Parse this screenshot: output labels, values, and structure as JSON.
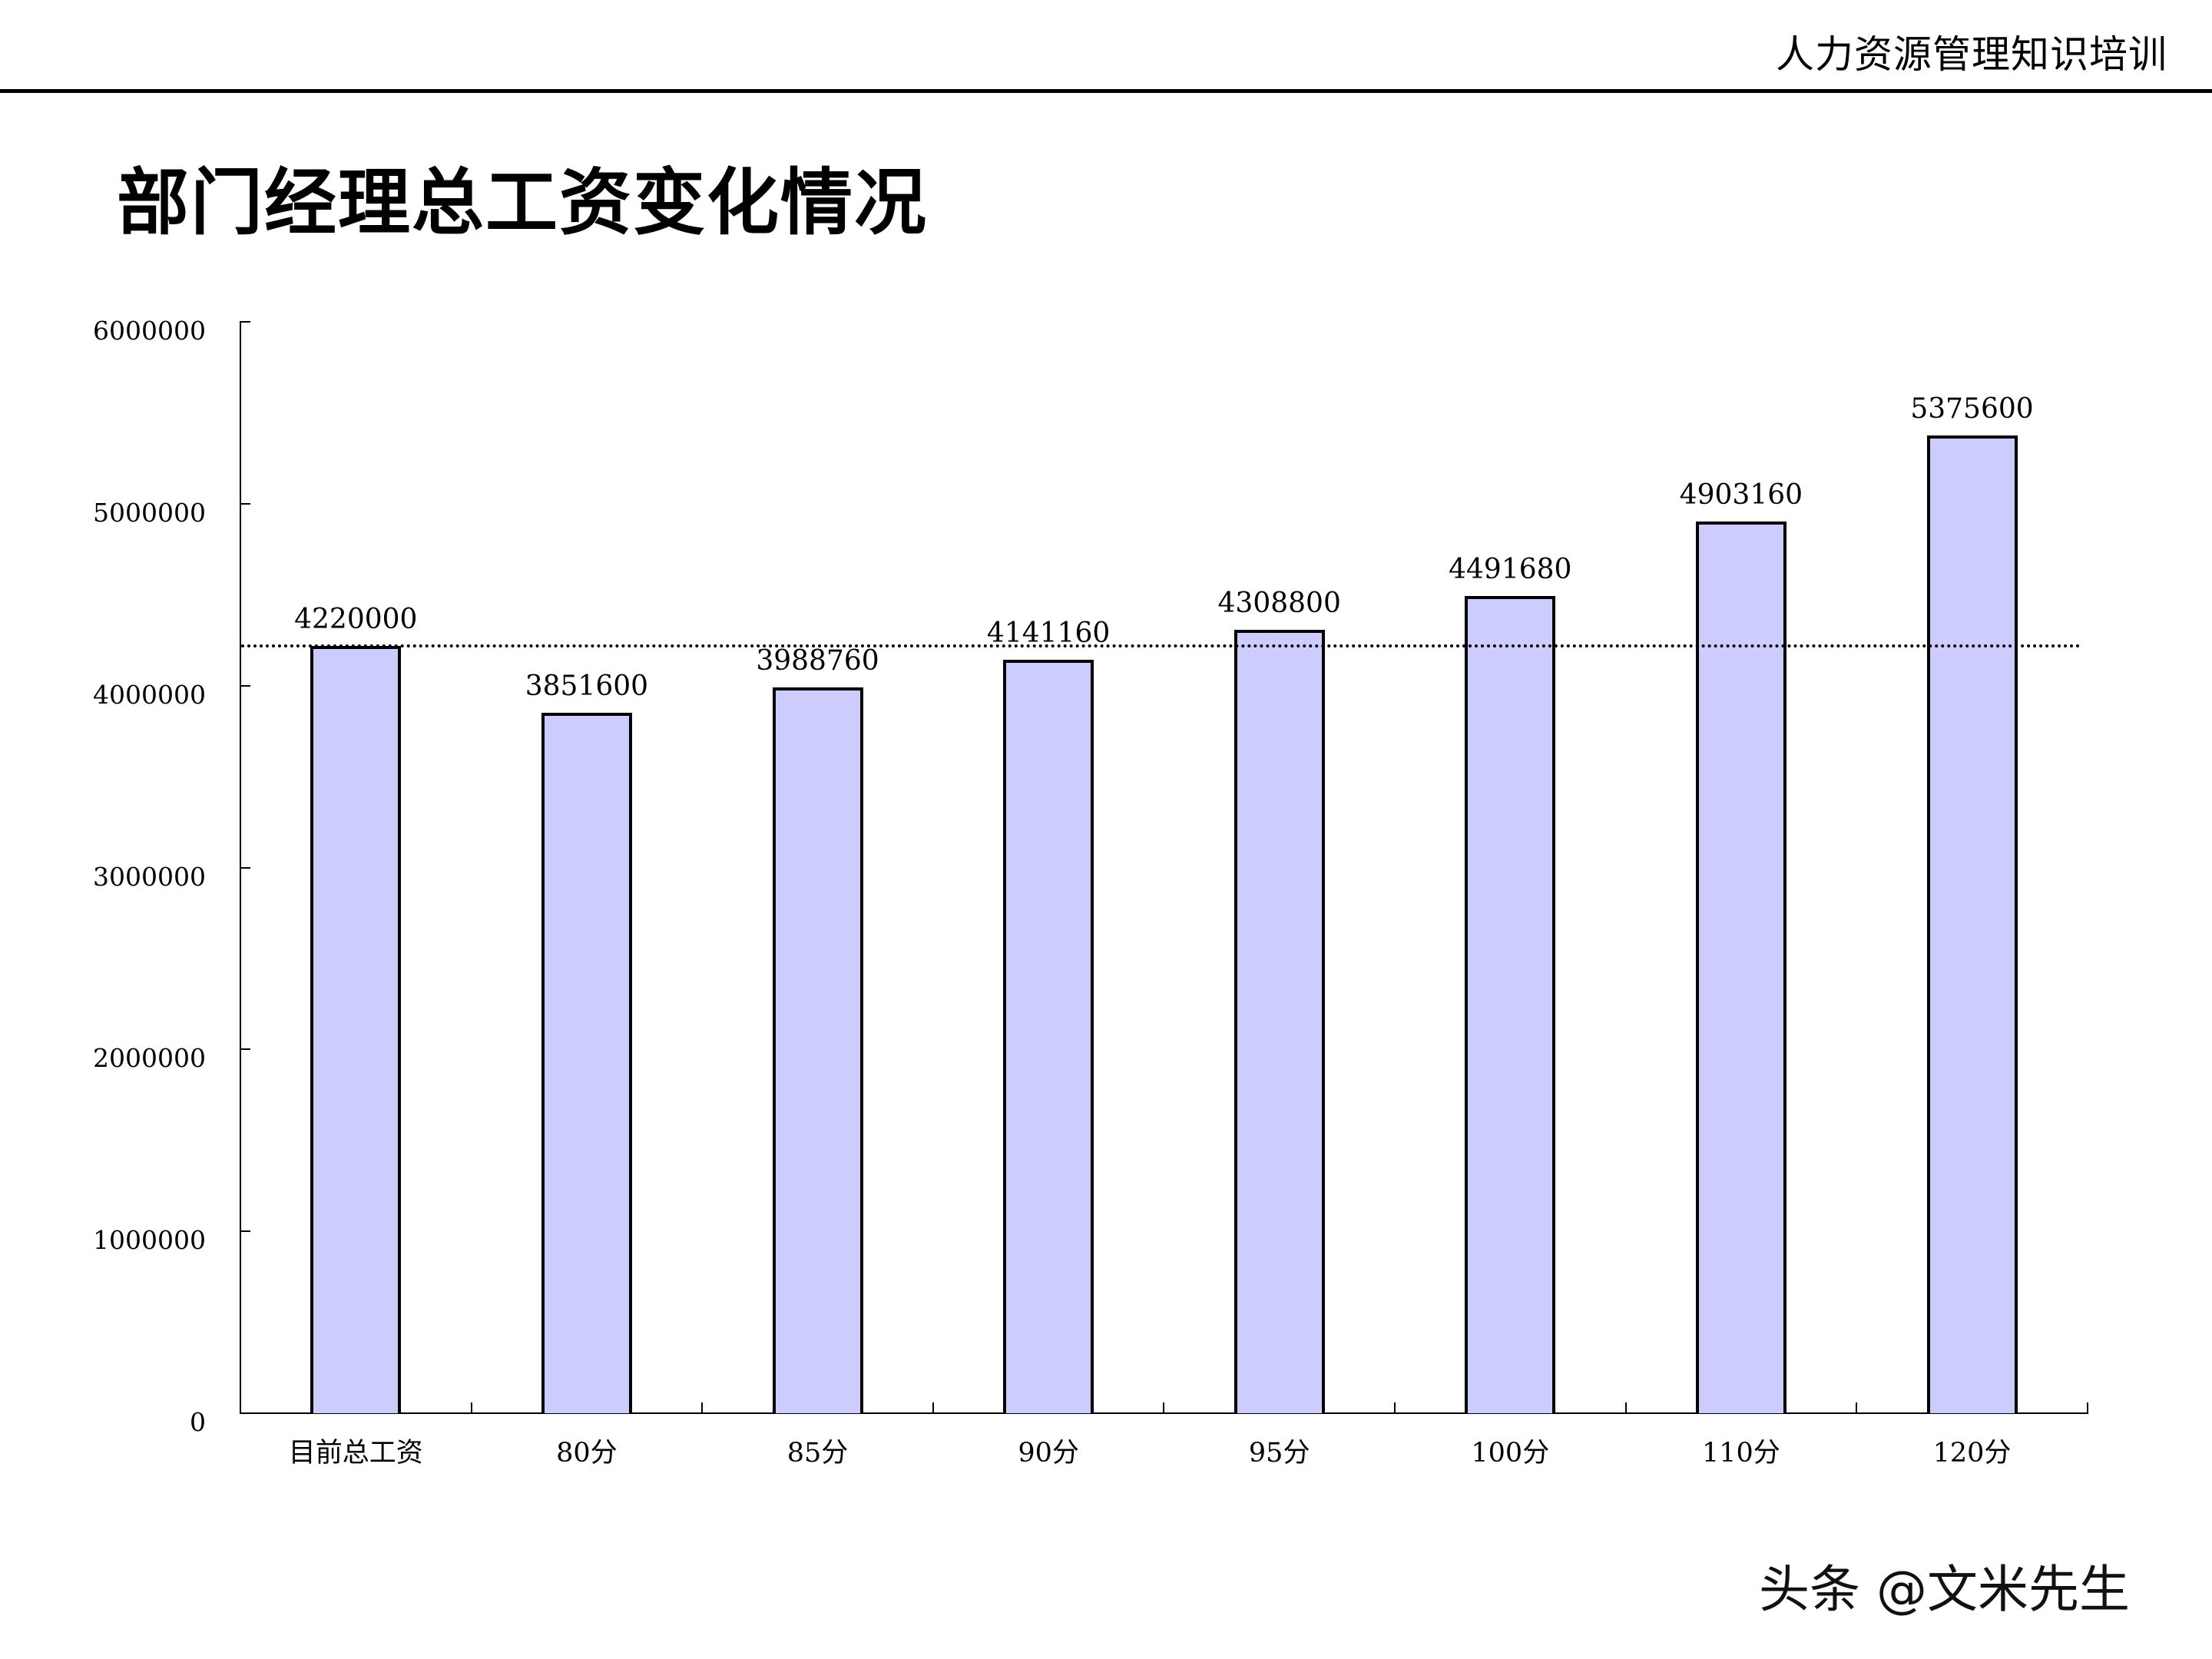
{
  "header": {
    "title": "人力资源管理知识培训"
  },
  "page": {
    "title": "部门经理总工资变化情况"
  },
  "watermark": "头条 @文米先生",
  "colors": {
    "bar_fill": "#ccccff",
    "bar_border": "#000000",
    "reference_line": "#000000"
  },
  "chart_data": {
    "type": "bar",
    "title": "部门经理总工资变化情况",
    "xlabel": "",
    "ylabel": "",
    "categories": [
      "目前总工资",
      "80分",
      "85分",
      "90分",
      "95分",
      "100分",
      "110分",
      "120分"
    ],
    "values": [
      4220000,
      3851600,
      3988760,
      4141160,
      4308800,
      4491680,
      4903160,
      5375600
    ],
    "value_labels": [
      "4220000",
      "3851600",
      "3988760",
      "4141160",
      "4308800",
      "4491680",
      "4903160",
      "5375600"
    ],
    "ylim": [
      0,
      6000000
    ],
    "yticks": [
      0,
      1000000,
      2000000,
      3000000,
      4000000,
      5000000,
      6000000
    ],
    "ytick_labels": [
      "0",
      "1000000",
      "2000000",
      "3000000",
      "4000000",
      "5000000",
      "6000000"
    ],
    "reference_line": {
      "value": 4220000,
      "style": "dotted",
      "label": "目前总工资"
    },
    "grid": false,
    "legend": null
  }
}
